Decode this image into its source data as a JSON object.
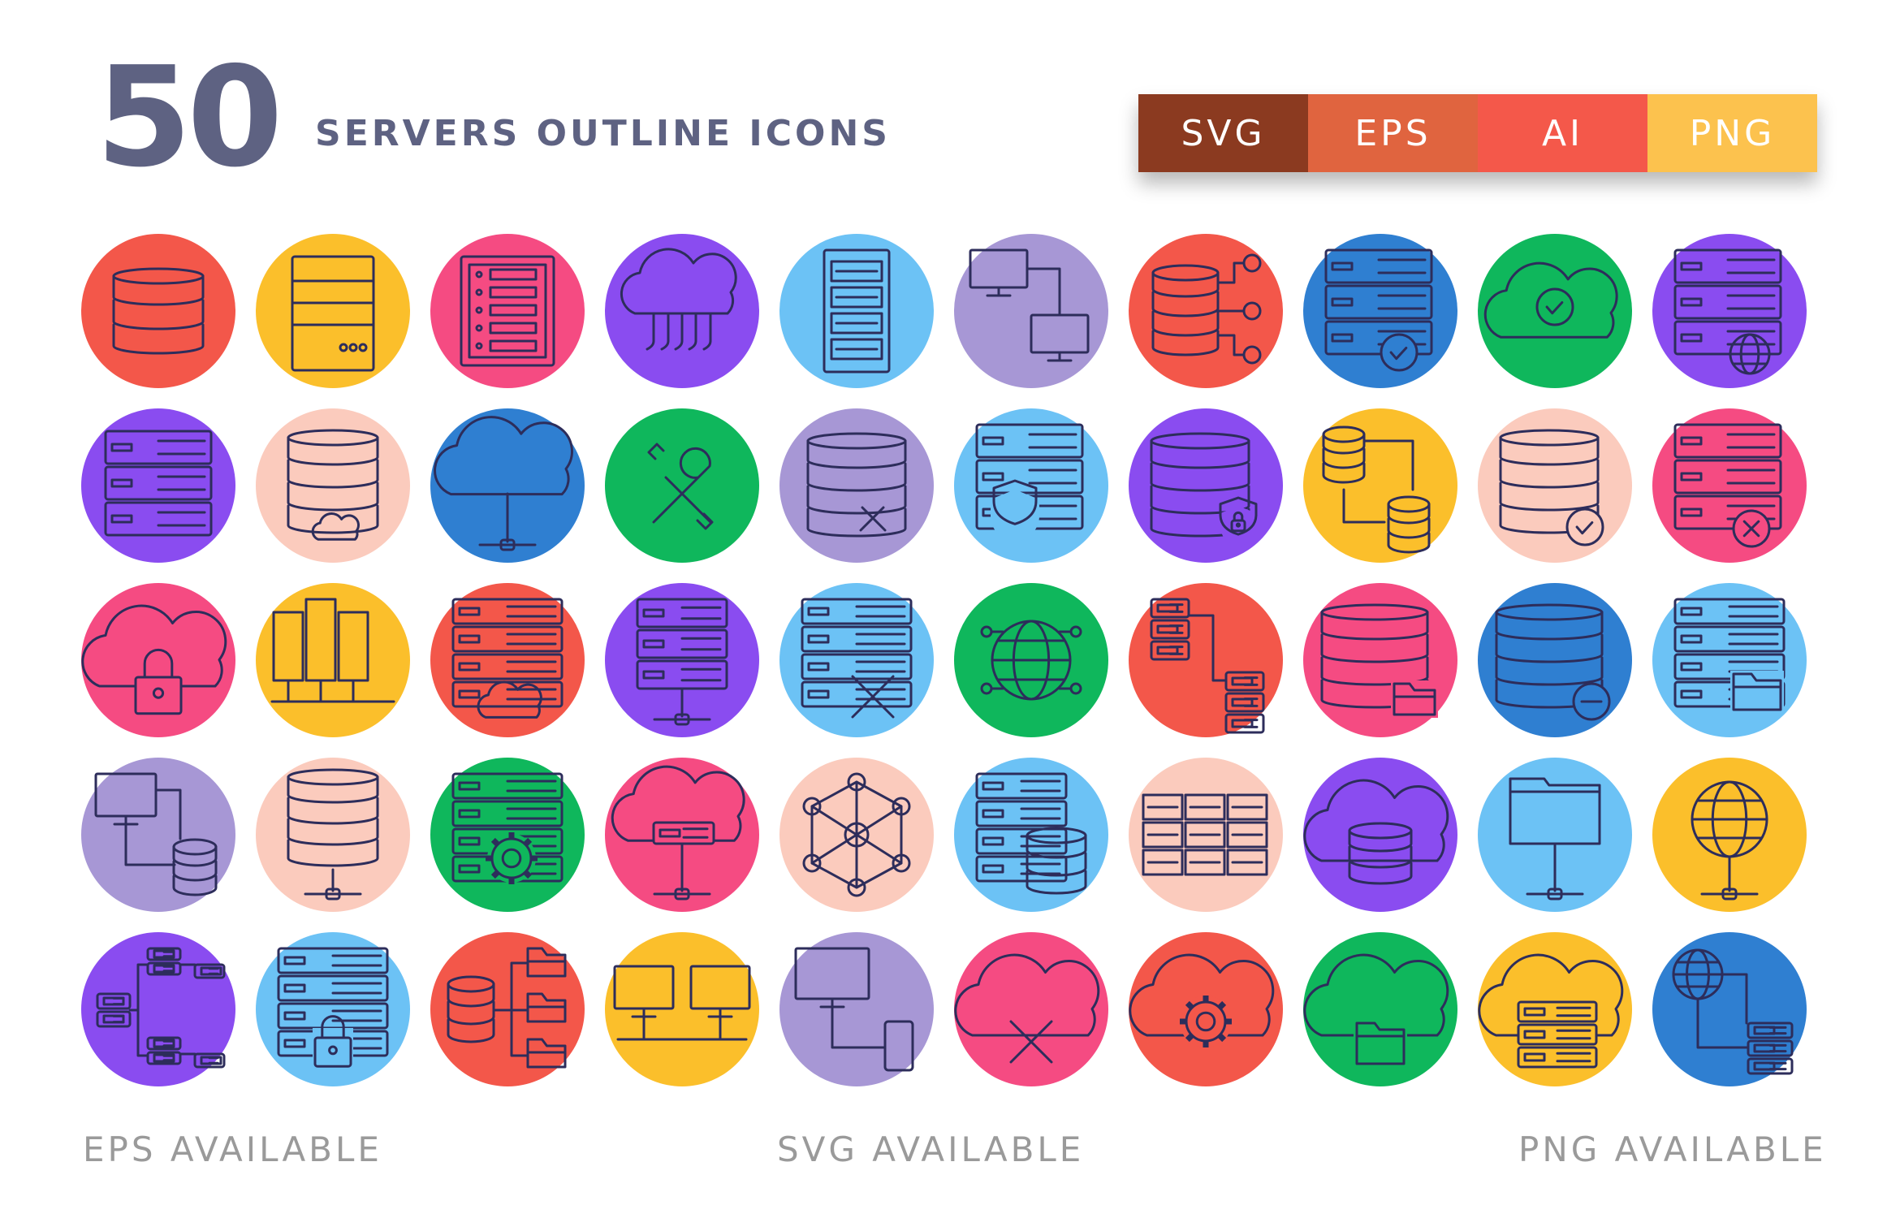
{
  "header": {
    "count": "50",
    "title": "SERVERS OUTLINE ICONS"
  },
  "formats": [
    {
      "label": "SVG",
      "color": "#8b3a20"
    },
    {
      "label": "EPS",
      "color": "#e0643f"
    },
    {
      "label": "AI",
      "color": "#f4584a"
    },
    {
      "label": "PNG",
      "color": "#fcc24e"
    }
  ],
  "footer": {
    "left": "EPS AVAILABLE",
    "middle": "SVG AVAILABLE",
    "right": "PNG AVAILABLE"
  },
  "outline_color": "#2d2d5b",
  "icons": [
    {
      "name": "database-stack-icon",
      "glyph": "database",
      "color": "#f3574a"
    },
    {
      "name": "server-cabinet-icon",
      "glyph": "cabinet",
      "color": "#fbbf2b"
    },
    {
      "name": "server-panel-icon",
      "glyph": "panel",
      "color": "#f54b82"
    },
    {
      "name": "cloud-network-icon",
      "glyph": "cloud-circuit",
      "color": "#8a4cf0"
    },
    {
      "name": "server-tower-icon",
      "glyph": "tower",
      "color": "#6cc2f5"
    },
    {
      "name": "connected-computers-icon",
      "glyph": "computers",
      "color": "#a797d5"
    },
    {
      "name": "database-connections-icon",
      "glyph": "db-nodes",
      "color": "#f3574a"
    },
    {
      "name": "server-check-icon",
      "glyph": "rack-check",
      "color": "#2f7fd1"
    },
    {
      "name": "cloud-check-icon",
      "glyph": "cloud-check",
      "color": "#0fb75c"
    },
    {
      "name": "server-globe-icon",
      "glyph": "rack-globe",
      "color": "#8a4cf0"
    },
    {
      "name": "server-rack-icon",
      "glyph": "rack",
      "color": "#8a4cf0"
    },
    {
      "name": "database-cloud-icon",
      "glyph": "db-cloud",
      "color": "#fbcbbd"
    },
    {
      "name": "cloud-share-icon",
      "glyph": "cloud-share",
      "color": "#2f7fd1"
    },
    {
      "name": "tools-icon",
      "glyph": "tools",
      "color": "#0fb75c"
    },
    {
      "name": "database-tools-icon",
      "glyph": "db-tools",
      "color": "#a797d5"
    },
    {
      "name": "server-shield-icon",
      "glyph": "rack-shield",
      "color": "#6cc2f5"
    },
    {
      "name": "database-lock-icon",
      "glyph": "db-lock",
      "color": "#8a4cf0"
    },
    {
      "name": "database-transfer-icon",
      "glyph": "db-transfer",
      "color": "#fbbf2b"
    },
    {
      "name": "database-check-icon",
      "glyph": "db-check",
      "color": "#fbcbbd"
    },
    {
      "name": "server-error-icon",
      "glyph": "rack-x",
      "color": "#f54b82"
    },
    {
      "name": "cloud-lock-icon",
      "glyph": "cloud-lock",
      "color": "#f54b82"
    },
    {
      "name": "server-cluster-icon",
      "glyph": "cluster",
      "color": "#fbbf2b"
    },
    {
      "name": "server-cloud-icon",
      "glyph": "rack-cloud",
      "color": "#f3574a"
    },
    {
      "name": "server-network-icon",
      "glyph": "rack-share",
      "color": "#8a4cf0"
    },
    {
      "name": "server-tools-icon",
      "glyph": "rack-tools",
      "color": "#6cc2f5"
    },
    {
      "name": "globe-circuit-icon",
      "glyph": "globe-circuit",
      "color": "#0fb75c"
    },
    {
      "name": "server-transfer-icon",
      "glyph": "rack-transfer",
      "color": "#f3574a"
    },
    {
      "name": "database-folder-icon",
      "glyph": "db-folder",
      "color": "#f54b82"
    },
    {
      "name": "database-minus-icon",
      "glyph": "db-minus",
      "color": "#2f7fd1"
    },
    {
      "name": "server-folder-icon",
      "glyph": "rack-folder",
      "color": "#6cc2f5"
    },
    {
      "name": "computer-database-icon",
      "glyph": "pc-db",
      "color": "#a797d5"
    },
    {
      "name": "database-network-icon",
      "glyph": "db-share",
      "color": "#fbcbbd"
    },
    {
      "name": "server-gear-icon",
      "glyph": "rack-gear",
      "color": "#0fb75c"
    },
    {
      "name": "cloud-server-icon",
      "glyph": "cloud-rack",
      "color": "#f54b82"
    },
    {
      "name": "network-nodes-icon",
      "glyph": "nodes",
      "color": "#fbcbbd"
    },
    {
      "name": "server-database-icon",
      "glyph": "rack-db",
      "color": "#6cc2f5"
    },
    {
      "name": "server-array-icon",
      "glyph": "array",
      "color": "#fbcbbd"
    },
    {
      "name": "cloud-database-icon",
      "glyph": "cloud-db",
      "color": "#8a4cf0"
    },
    {
      "name": "folder-network-icon",
      "glyph": "folder-share",
      "color": "#6cc2f5"
    },
    {
      "name": "globe-network-icon",
      "glyph": "globe-share",
      "color": "#fbbf2b"
    },
    {
      "name": "server-hierarchy-icon",
      "glyph": "hierarchy",
      "color": "#8a4cf0"
    },
    {
      "name": "server-lock-icon",
      "glyph": "rack-lock",
      "color": "#6cc2f5"
    },
    {
      "name": "database-folders-icon",
      "glyph": "db-folders",
      "color": "#f3574a"
    },
    {
      "name": "monitors-connected-icon",
      "glyph": "monitors",
      "color": "#fbbf2b"
    },
    {
      "name": "computer-phone-icon",
      "glyph": "pc-phone",
      "color": "#a797d5"
    },
    {
      "name": "cloud-tools-icon",
      "glyph": "cloud-tools",
      "color": "#f54b82"
    },
    {
      "name": "cloud-gear-icon",
      "glyph": "cloud-gear",
      "color": "#f3574a"
    },
    {
      "name": "cloud-folder-icon",
      "glyph": "cloud-folder",
      "color": "#0fb75c"
    },
    {
      "name": "cloud-rack-icon",
      "glyph": "cloud-stack",
      "color": "#fbbf2b"
    },
    {
      "name": "globe-server-icon",
      "glyph": "globe-rack",
      "color": "#2f7fd1"
    }
  ]
}
